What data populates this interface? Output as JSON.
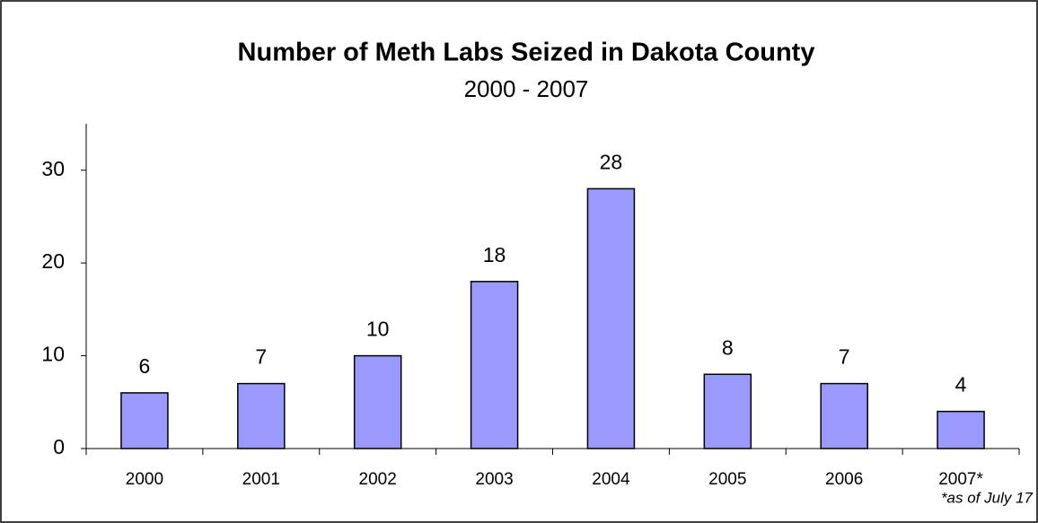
{
  "chart_data": {
    "type": "bar",
    "title": "Number of Meth Labs Seized in Dakota County",
    "subtitle": "2000 - 2007",
    "categories": [
      "2000",
      "2001",
      "2002",
      "2003",
      "2004",
      "2005",
      "2006",
      "2007*"
    ],
    "values": [
      6,
      7,
      10,
      18,
      28,
      8,
      7,
      4
    ],
    "color": "#9999ff",
    "ylim": [
      0,
      35
    ],
    "yticks": [
      0,
      10,
      20,
      30
    ],
    "grid": false,
    "annotation": "*as of July 17"
  }
}
